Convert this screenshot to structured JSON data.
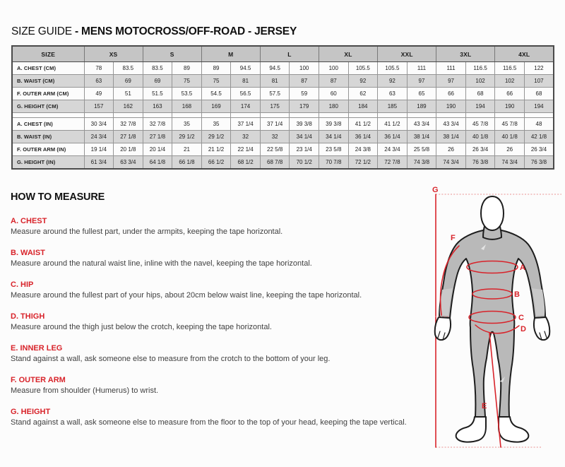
{
  "page": {
    "title_prefix": "SIZE GUIDE ",
    "title_product": "- MENS MOTOCROSS/OFF-ROAD - JERSEY"
  },
  "colors": {
    "accent_red": "#d8232a",
    "dotted_pink": "#e98b8b",
    "table_header_bg": "#c5c5c5",
    "table_alt_row_bg": "#d6d6d6"
  },
  "size_table": {
    "header": [
      "SIZE",
      "XS",
      "S",
      "M",
      "L",
      "XL",
      "XXL",
      "3XL",
      "4XL"
    ],
    "sections": [
      {
        "unit": "CM",
        "rows": [
          {
            "label": "A. CHEST (CM)",
            "values": [
              "78",
              "83.5",
              "83.5",
              "89",
              "89",
              "94.5",
              "94.5",
              "100",
              "100",
              "105.5",
              "105.5",
              "111",
              "111",
              "116.5",
              "116.5",
              "122"
            ]
          },
          {
            "label": "B. WAIST (CM)",
            "values": [
              "63",
              "69",
              "69",
              "75",
              "75",
              "81",
              "81",
              "87",
              "87",
              "92",
              "92",
              "97",
              "97",
              "102",
              "102",
              "107"
            ]
          },
          {
            "label": "F. OUTER ARM (CM)",
            "values": [
              "49",
              "51",
              "51.5",
              "53.5",
              "54.5",
              "56.5",
              "57.5",
              "59",
              "60",
              "62",
              "63",
              "65",
              "66",
              "68",
              "66",
              "68"
            ]
          },
          {
            "label": "G. HEIGHT (CM)",
            "values": [
              "157",
              "162",
              "163",
              "168",
              "169",
              "174",
              "175",
              "179",
              "180",
              "184",
              "185",
              "189",
              "190",
              "194",
              "190",
              "194"
            ]
          }
        ]
      },
      {
        "unit": "IN",
        "rows": [
          {
            "label": "A. CHEST (IN)",
            "values": [
              "30 3/4",
              "32 7/8",
              "32 7/8",
              "35",
              "35",
              "37 1/4",
              "37 1/4",
              "39 3/8",
              "39 3/8",
              "41 1/2",
              "41 1/2",
              "43 3/4",
              "43 3/4",
              "45 7/8",
              "45 7/8",
              "48"
            ]
          },
          {
            "label": "B. WAIST (IN)",
            "values": [
              "24 3/4",
              "27 1/8",
              "27 1/8",
              "29 1/2",
              "29 1/2",
              "32",
              "32",
              "34 1/4",
              "34 1/4",
              "36 1/4",
              "36 1/4",
              "38 1/4",
              "38 1/4",
              "40 1/8",
              "40 1/8",
              "42 1/8"
            ]
          },
          {
            "label": "F. OUTER ARM (IN)",
            "values": [
              "19 1/4",
              "20 1/8",
              "20 1/4",
              "21",
              "21 1/2",
              "22 1/4",
              "22 5/8",
              "23 1/4",
              "23 5/8",
              "24 3/8",
              "24 3/4",
              "25 5/8",
              "26",
              "26 3/4",
              "26",
              "26 3/4"
            ]
          },
          {
            "label": "G. HEIGHT (IN)",
            "values": [
              "61 3/4",
              "63 3/4",
              "64 1/8",
              "66 1/8",
              "66 1/2",
              "68 1/2",
              "68 7/8",
              "70 1/2",
              "70 7/8",
              "72 1/2",
              "72 7/8",
              "74 3/8",
              "74 3/4",
              "76 3/8",
              "74 3/4",
              "76 3/8"
            ]
          }
        ]
      }
    ]
  },
  "how_to_measure": {
    "heading": "HOW TO MEASURE",
    "items": [
      {
        "label": "A. CHEST",
        "text": "Measure around the fullest part, under the armpits, keeping the tape horizontal."
      },
      {
        "label": "B. WAIST",
        "text": "Measure around the natural waist line, inline with the navel, keeping the tape horizontal."
      },
      {
        "label": "C. HIP",
        "text": "Measure around the fullest part of your hips, about 20cm below waist line, keeping the tape horizontal."
      },
      {
        "label": "D. THIGH",
        "text": "Measure around the thigh just below the crotch, keeping the tape horizontal."
      },
      {
        "label": "E. INNER LEG",
        "text": "Stand against a wall, ask someone else to measure from the crotch to the bottom of your leg."
      },
      {
        "label": "F. OUTER ARM",
        "text": "Measure from shoulder (Humerus) to wrist."
      },
      {
        "label": "G. HEIGHT",
        "text": "Stand against a wall, ask someone else to measure from the floor to the top of your head, keeping the tape vertical."
      }
    ]
  },
  "diagram": {
    "labels": {
      "a": "A",
      "b": "B",
      "c": "C",
      "d": "D",
      "e": "E",
      "f": "F",
      "g": "G"
    }
  }
}
